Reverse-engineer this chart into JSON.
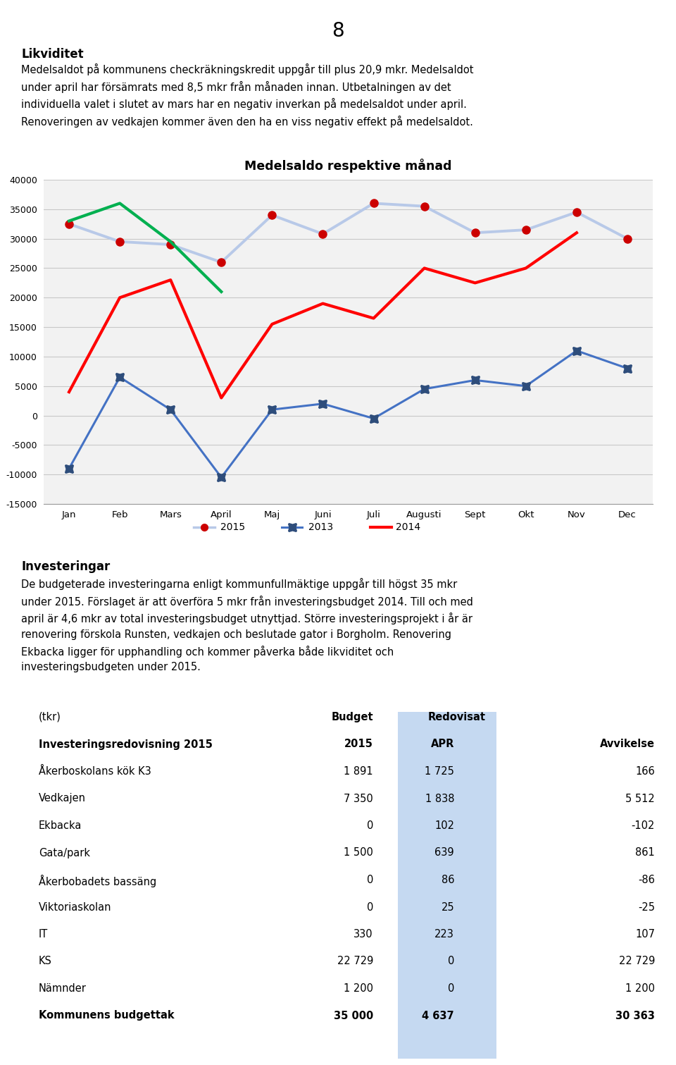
{
  "page_number": "8",
  "title_likviditet": "Likviditet",
  "para_likviditet": "Medelsaldot på kommunens checkräkningskredit uppgår till plus 20,9 mkr. Medelsaldot\nunder april har försämrats med 8,5 mkr från månaden innan. Utbetalningen av det\nindividuella valet i slutet av mars har en negativ inverkan på medelsaldot under april.\nRenoveringen av vedkajen kommer även den ha en viss negativ effekt på medelsaldot.",
  "chart_title": "Medelsaldo respektive månad",
  "months": [
    "Jan",
    "Feb",
    "Mars",
    "April",
    "Maj",
    "Juni",
    "Juli",
    "Augusti",
    "Sept",
    "Okt",
    "Nov",
    "Dec"
  ],
  "series_2015_full": [
    32500,
    29500,
    29000,
    26000,
    34000,
    30800,
    36000,
    35500,
    31000,
    31500,
    34500,
    30000
  ],
  "series_2013": [
    -9000,
    6500,
    1000,
    -10500,
    1000,
    2000,
    -500,
    4500,
    6000,
    5000,
    11000,
    8000
  ],
  "series_2014_red": [
    4000,
    20000,
    23000,
    3000,
    15500,
    19000,
    16500,
    25000,
    22500,
    25000,
    31000,
    null
  ],
  "series_2014_green": [
    33000,
    36000,
    29500,
    21000,
    null,
    null,
    null,
    null,
    null,
    null,
    null,
    null
  ],
  "ylim_min": -15000,
  "ylim_max": 40000,
  "yticks": [
    -15000,
    -10000,
    -5000,
    0,
    5000,
    10000,
    15000,
    20000,
    25000,
    30000,
    35000,
    40000
  ],
  "color_2015_line": "#b8c9e8",
  "color_2015_dot": "#cc0000",
  "color_2013_line": "#4472c4",
  "color_2013_marker": "#2e4d7b",
  "color_2014_red": "#ff0000",
  "color_2014_green": "#00b050",
  "title_investeringar": "Investeringar",
  "para_investeringar": "De budgeterade investeringarna enligt kommunfullmäktige uppgår till högst 35 mkr\nunder 2015. Förslaget är att överföra 5 mkr från investeringsbudget 2014. Till och med\napril är 4,6 mkr av total investeringsbudget utnyttjad. Större investeringsprojekt i år är\nrenovering förskola Runsten, vedkajen och beslutade gator i Borgholm. Renovering\nEkbacka ligger för upphandling och kommer påverka både likviditet och\ninvesteringsbudgeten under 2015.",
  "table_rows": [
    [
      "Åkerboskolans kök K3",
      "1 891",
      "1 725",
      "166"
    ],
    [
      "Vedkajen",
      "7 350",
      "1 838",
      "5 512"
    ],
    [
      "Ekbacka",
      "0",
      "102",
      "-102"
    ],
    [
      "Gata/park",
      "1 500",
      "639",
      "861"
    ],
    [
      "Åkerbobadets bassäng",
      "0",
      "86",
      "-86"
    ],
    [
      "Viktoriaskolan",
      "0",
      "25",
      "-25"
    ],
    [
      "IT",
      "330",
      "223",
      "107"
    ],
    [
      "KS",
      "22 729",
      "0",
      "22 729"
    ],
    [
      "Nämnder",
      "1 200",
      "0",
      "1 200"
    ]
  ],
  "table_footer": [
    "Kommunens budgettak",
    "35 000",
    "4 637",
    "30 363"
  ],
  "bg_color": "#ffffff",
  "grid_color": "#c8c8c8",
  "highlight_color": "#c5d9f1"
}
